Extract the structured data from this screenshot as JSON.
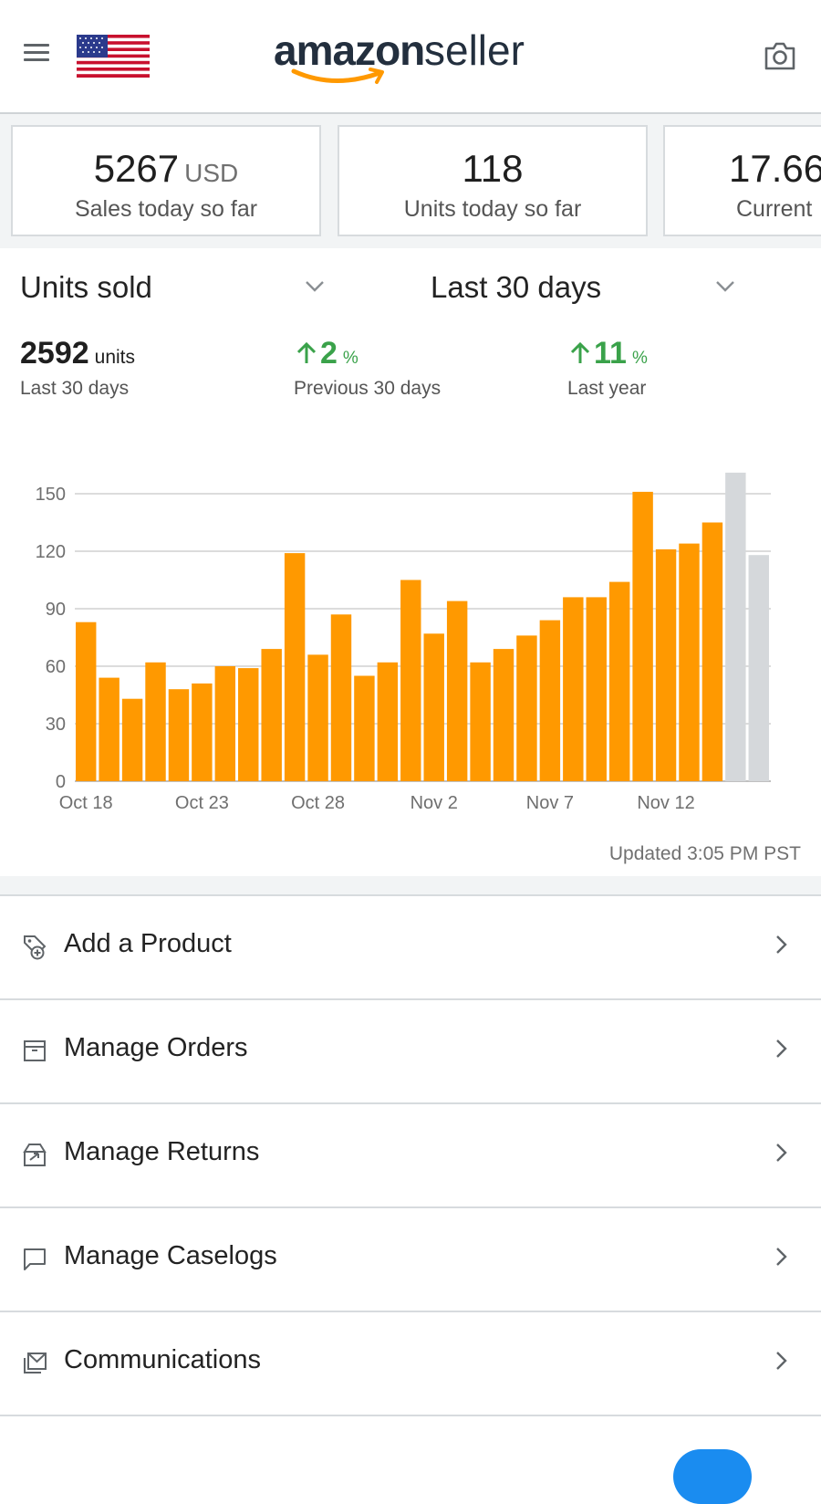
{
  "header": {
    "logo_left": "amazon",
    "logo_right": "seller",
    "menu_icon": "hamburger-menu-icon",
    "flag_icon": "us-flag-icon",
    "camera_icon": "camera-icon"
  },
  "summary_cards": [
    {
      "value": "5267",
      "unit": "USD",
      "label": "Sales today so far"
    },
    {
      "value": "118",
      "unit": "",
      "label": "Units today so far"
    },
    {
      "value": "17.66",
      "unit": "",
      "label": "Current"
    }
  ],
  "selectors": {
    "metric": "Units sold",
    "period": "Last 30 days"
  },
  "stats": {
    "total_value": "2592",
    "total_unit": "units",
    "total_label": "Last 30 days",
    "prev_value": "2",
    "prev_unit": "%",
    "prev_label": "Previous 30 days",
    "year_value": "11",
    "year_unit": "%",
    "year_label": "Last year"
  },
  "chart_data": {
    "type": "bar",
    "title": "",
    "xlabel": "",
    "ylabel": "",
    "ylim": [
      0,
      160
    ],
    "yticks": [
      0,
      30,
      60,
      90,
      120,
      150
    ],
    "x_tick_labels": [
      "Oct 18",
      "Oct 23",
      "Oct 28",
      "Nov 2",
      "Nov 7",
      "Nov 12"
    ],
    "categories": [
      "Oct 18",
      "Oct 19",
      "Oct 20",
      "Oct 21",
      "Oct 22",
      "Oct 23",
      "Oct 24",
      "Oct 25",
      "Oct 26",
      "Oct 27",
      "Oct 28",
      "Oct 29",
      "Oct 30",
      "Oct 31",
      "Nov 1",
      "Nov 2",
      "Nov 3",
      "Nov 4",
      "Nov 5",
      "Nov 6",
      "Nov 7",
      "Nov 8",
      "Nov 9",
      "Nov 10",
      "Nov 11",
      "Nov 12",
      "Nov 13",
      "Nov 14",
      "Nov 15",
      "Nov 16"
    ],
    "values": [
      83,
      54,
      43,
      62,
      48,
      51,
      60,
      59,
      69,
      119,
      66,
      87,
      55,
      62,
      105,
      77,
      94,
      62,
      69,
      76,
      84,
      96,
      96,
      104,
      151,
      121,
      124,
      135,
      161,
      118
    ],
    "highlight_indices": [
      28,
      29
    ],
    "grid": true,
    "colors": {
      "bar": "#ff9900",
      "highlight": "#d5d8db",
      "grid": "#c8c8c8"
    }
  },
  "updated_text": "Updated 3:05 PM PST",
  "menu": [
    {
      "label": "Add a Product",
      "icon": "tag-plus-icon"
    },
    {
      "label": "Manage Orders",
      "icon": "box-icon"
    },
    {
      "label": "Manage Returns",
      "icon": "return-box-icon"
    },
    {
      "label": "Manage Caselogs",
      "icon": "chat-bubble-icon"
    },
    {
      "label": "Communications",
      "icon": "mail-icon"
    }
  ]
}
